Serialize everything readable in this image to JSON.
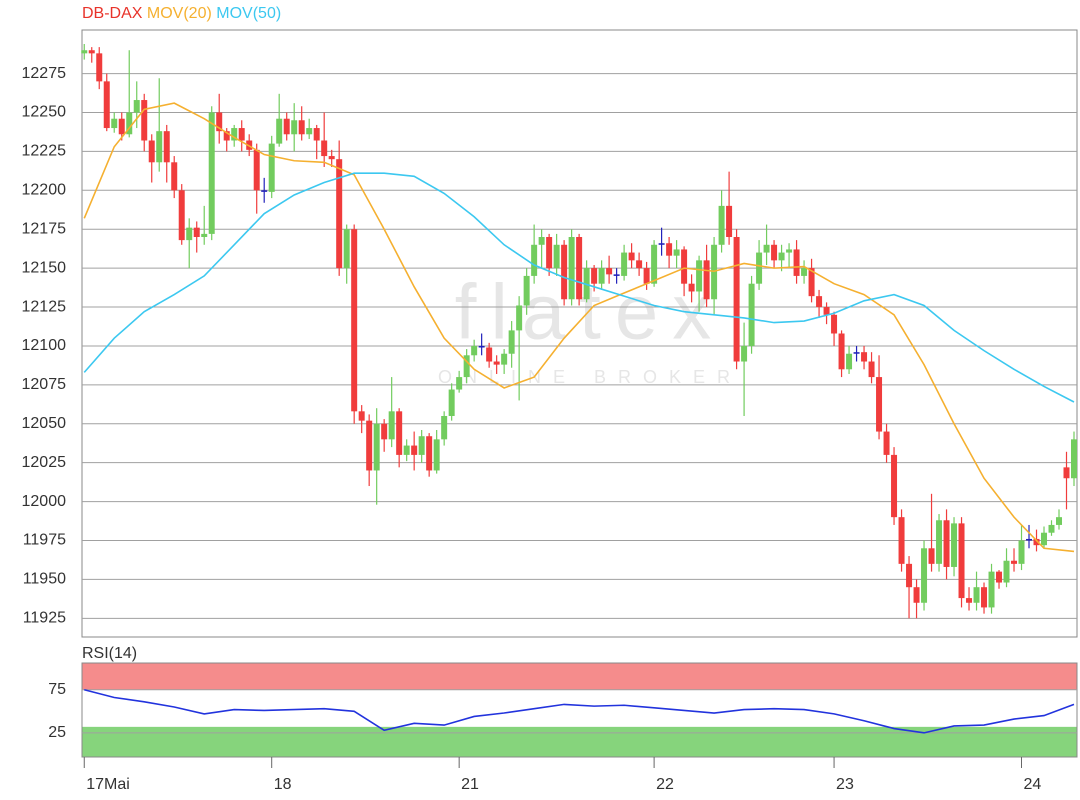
{
  "chart_data": [
    {
      "type": "candlestick",
      "xlim": [
        -0.3,
        132.4
      ],
      "ylim": [
        11913,
        12303
      ],
      "yticks": [
        11925,
        11950,
        11975,
        12000,
        12025,
        12050,
        12075,
        12100,
        12125,
        12150,
        12175,
        12200,
        12225,
        12250,
        12275
      ],
      "grid": true,
      "series": [
        {
          "name": "DB-DAX",
          "color": "#e8332a",
          "up_color": "#72cc5e",
          "down_color": "#f03c3c",
          "doji_color": "#2222bb",
          "open": [
            12288,
            12290,
            12288,
            12270,
            12240,
            12246,
            12236,
            12250,
            12258,
            12232,
            12218,
            12238,
            12218,
            12200,
            12168,
            12176,
            12170,
            12172,
            12250,
            12238,
            12232,
            12240,
            12232,
            12226,
            12200,
            12199,
            12230,
            12246,
            12236,
            12245,
            12236,
            12240,
            12232,
            12222,
            12220,
            12150,
            12175,
            12058,
            12052,
            12020,
            12050,
            12040,
            12058,
            12030,
            12036,
            12030,
            12042,
            12020,
            12040,
            12055,
            12072,
            12080,
            12094,
            12100,
            12099,
            12090,
            12088,
            12095,
            12110,
            12126,
            12145,
            12165,
            12170,
            12150,
            12165,
            12130,
            12170,
            12130,
            12150,
            12140,
            12150,
            12146,
            12145,
            12160,
            12155,
            12150,
            12140,
            12165,
            12166,
            12158,
            12162,
            12140,
            12135,
            12155,
            12130,
            12165,
            12190,
            12170,
            12090,
            12100,
            12140,
            12160,
            12165,
            12155,
            12160,
            12162,
            12145,
            12150,
            12132,
            12125,
            12120,
            12108,
            12085,
            12095,
            12096,
            12090,
            12080,
            12045,
            12030,
            11990,
            11960,
            11945,
            11935,
            11970,
            11960,
            11988,
            11958,
            11986,
            11938,
            11935,
            11945,
            11932,
            11955,
            11948,
            11962,
            11960,
            11975,
            11976,
            11972,
            11980,
            11985,
            12022,
            12015
          ],
          "high": [
            12294,
            12292,
            12292,
            12275,
            12250,
            12250,
            12290,
            12270,
            12262,
            12236,
            12272,
            12242,
            12222,
            12204,
            12182,
            12180,
            12190,
            12254,
            12262,
            12240,
            12242,
            12245,
            12236,
            12230,
            12208,
            12235,
            12262,
            12250,
            12256,
            12254,
            12246,
            12242,
            12250,
            12226,
            12232,
            12178,
            12178,
            12062,
            12056,
            12060,
            12053,
            12080,
            12060,
            12040,
            12045,
            12046,
            12044,
            12046,
            12058,
            12076,
            12084,
            12098,
            12104,
            12108,
            12102,
            12094,
            12098,
            12116,
            12132,
            12150,
            12178,
            12175,
            12172,
            12172,
            12168,
            12175,
            12172,
            12155,
            12152,
            12155,
            12158,
            12150,
            12165,
            12166,
            12160,
            12154,
            12168,
            12176,
            12170,
            12168,
            12164,
            12146,
            12158,
            12165,
            12170,
            12200,
            12212,
            12175,
            12115,
            12145,
            12168,
            12178,
            12168,
            12165,
            12166,
            12168,
            12155,
            12156,
            12136,
            12128,
            12122,
            12110,
            12100,
            12100,
            12100,
            12096,
            12094,
            12050,
            12035,
            11995,
            11965,
            11950,
            11975,
            12005,
            11992,
            11995,
            11990,
            11990,
            11945,
            11955,
            11948,
            11960,
            11956,
            11970,
            11970,
            11985,
            11985,
            11982,
            11984,
            11988,
            11995,
            12032,
            12045
          ],
          "low": [
            12284,
            12282,
            12265,
            12238,
            12237,
            12232,
            12234,
            12240,
            12225,
            12205,
            12212,
            12205,
            12195,
            12165,
            12150,
            12160,
            12165,
            12168,
            12230,
            12225,
            12228,
            12225,
            12222,
            12185,
            12192,
            12195,
            12228,
            12232,
            12225,
            12232,
            12233,
            12220,
            12215,
            12215,
            12145,
            12140,
            12050,
            12044,
            12010,
            11998,
            12032,
            12035,
            12022,
            12026,
            12020,
            12025,
            12016,
            12018,
            12036,
            12052,
            12070,
            12076,
            12090,
            12094,
            12086,
            12082,
            12082,
            12086,
            12065,
            12120,
            12140,
            12150,
            12145,
            12145,
            12126,
            12126,
            12126,
            12128,
            12135,
            12136,
            12140,
            12140,
            12142,
            12150,
            12145,
            12136,
            12138,
            12158,
            12150,
            12150,
            12132,
            12128,
            12122,
            12125,
            12120,
            12160,
            12165,
            12085,
            12055,
            12095,
            12136,
            12152,
            12150,
            12148,
            12150,
            12140,
            12140,
            12128,
            12118,
            12114,
            12100,
            12080,
            12082,
            12090,
            12085,
            12076,
            12040,
            12025,
            11985,
            11955,
            11925,
            11925,
            11930,
            11955,
            11955,
            11950,
            11952,
            11932,
            11930,
            11930,
            11928,
            11928,
            11944,
            11945,
            11955,
            11956,
            11970,
            11968,
            11970,
            11978,
            11982,
            11995,
            12010
          ],
          "close": [
            12290,
            12288,
            12270,
            12240,
            12246,
            12236,
            12250,
            12258,
            12232,
            12218,
            12238,
            12218,
            12200,
            12168,
            12176,
            12170,
            12172,
            12250,
            12238,
            12232,
            12240,
            12232,
            12226,
            12200,
            12199,
            12230,
            12246,
            12236,
            12245,
            12236,
            12240,
            12232,
            12222,
            12220,
            12150,
            12175,
            12058,
            12052,
            12020,
            12050,
            12040,
            12058,
            12030,
            12036,
            12030,
            12042,
            12020,
            12040,
            12055,
            12072,
            12080,
            12094,
            12100,
            12099,
            12090,
            12088,
            12095,
            12110,
            12126,
            12145,
            12165,
            12170,
            12150,
            12165,
            12130,
            12170,
            12130,
            12150,
            12140,
            12150,
            12146,
            12145,
            12160,
            12155,
            12150,
            12140,
            12165,
            12166,
            12158,
            12162,
            12140,
            12135,
            12155,
            12130,
            12165,
            12190,
            12170,
            12090,
            12100,
            12140,
            12160,
            12165,
            12155,
            12160,
            12162,
            12145,
            12150,
            12132,
            12125,
            12120,
            12108,
            12085,
            12095,
            12096,
            12090,
            12080,
            12045,
            12030,
            11990,
            11960,
            11945,
            11935,
            11970,
            11960,
            11988,
            11958,
            11986,
            11938,
            11935,
            11945,
            11932,
            11955,
            11948,
            11962,
            11960,
            11975,
            11976,
            11972,
            11980,
            11985,
            11990,
            12015,
            12040
          ]
        },
        {
          "name": "MOV(20)",
          "type": "line",
          "color": "#f5b030",
          "x": [
            0,
            4,
            8,
            12,
            16,
            20,
            24,
            28,
            32,
            36,
            40,
            44,
            48,
            52,
            56,
            60,
            64,
            68,
            72,
            76,
            80,
            84,
            88,
            92,
            96,
            100,
            104,
            108,
            112,
            116,
            120,
            124,
            128,
            132
          ],
          "values": [
            12182,
            12228,
            12252,
            12256,
            12246,
            12234,
            12223,
            12219,
            12218,
            12210,
            12175,
            12138,
            12105,
            12085,
            12073,
            12080,
            12105,
            12126,
            12134,
            12142,
            12150,
            12148,
            12153,
            12150,
            12151,
            12140,
            12133,
            12120,
            12088,
            12050,
            12015,
            11990,
            11970,
            11968
          ]
        },
        {
          "name": "MOV(50)",
          "type": "line",
          "color": "#3cc8f0",
          "x": [
            0,
            4,
            8,
            12,
            16,
            20,
            24,
            28,
            32,
            36,
            40,
            44,
            48,
            52,
            56,
            60,
            64,
            68,
            72,
            76,
            80,
            84,
            88,
            92,
            96,
            100,
            104,
            108,
            112,
            116,
            120,
            124,
            128,
            132
          ],
          "values": [
            12083,
            12105,
            12122,
            12133,
            12145,
            12165,
            12185,
            12197,
            12205,
            12211,
            12211,
            12209,
            12198,
            12183,
            12165,
            12152,
            12144,
            12138,
            12132,
            12126,
            12122,
            12120,
            12118,
            12115,
            12116,
            12121,
            12129,
            12133,
            12126,
            12110,
            12097,
            12085,
            12074,
            12064
          ]
        }
      ]
    },
    {
      "type": "line",
      "xlim": [
        -0.3,
        132.4
      ],
      "ylim": [
        -3,
        106
      ],
      "yticks": [
        25,
        75
      ],
      "grid": true,
      "upper_band_color": "#f58c8c",
      "lower_band_color": "#86d47c",
      "xticks": [
        {
          "value": 0,
          "label": "17Mai"
        },
        {
          "value": 25,
          "label": "18"
        },
        {
          "value": 50,
          "label": "21"
        },
        {
          "value": 76,
          "label": "22"
        },
        {
          "value": 100,
          "label": "23"
        },
        {
          "value": 125,
          "label": "24"
        }
      ],
      "series": [
        {
          "name": "RSI(14)",
          "color": "#2233dd",
          "x": [
            0,
            4,
            8,
            12,
            16,
            20,
            24,
            28,
            32,
            36,
            40,
            44,
            48,
            52,
            56,
            60,
            64,
            68,
            72,
            76,
            80,
            84,
            88,
            92,
            96,
            100,
            104,
            108,
            112,
            116,
            120,
            124,
            128,
            132
          ],
          "values": [
            75,
            66,
            61,
            55,
            47,
            52,
            51,
            52,
            53,
            50,
            28,
            36,
            34,
            44,
            48,
            53,
            58,
            56,
            57,
            54,
            51,
            48,
            52,
            53,
            52,
            47,
            39,
            30,
            25,
            33,
            34,
            41,
            45,
            58
          ]
        }
      ]
    }
  ],
  "watermark": {
    "logo": "flatex",
    "tagline": "ONLINE BROKER"
  }
}
